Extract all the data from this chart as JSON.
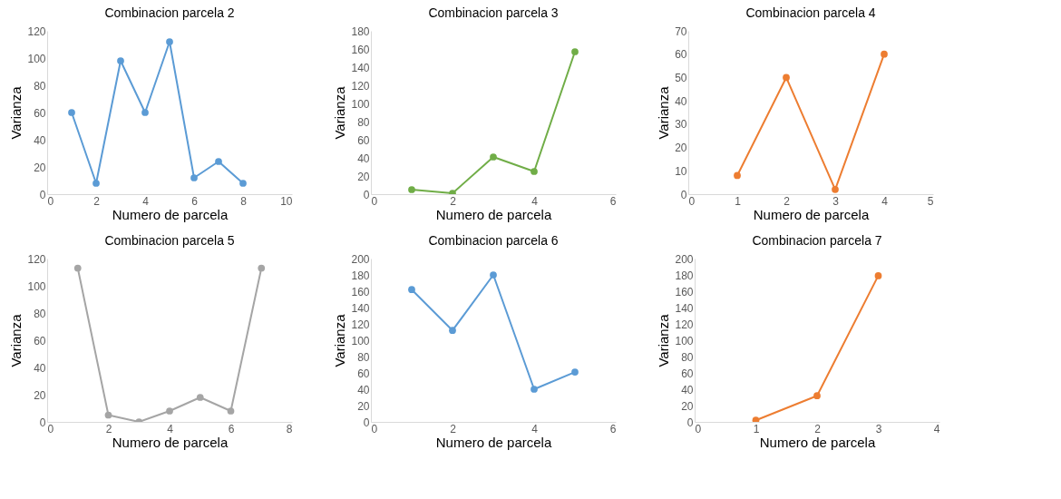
{
  "chart_data": [
    {
      "type": "line",
      "title": "Combinacion parcela 2",
      "xlabel": "Numero de parcela",
      "ylabel": "Varianza",
      "x": [
        1,
        2,
        3,
        4,
        5,
        6,
        7,
        8
      ],
      "xlim": [
        0,
        10
      ],
      "xticks": [
        0,
        2,
        4,
        6,
        8,
        10
      ],
      "ylim": [
        0,
        120
      ],
      "yticks": [
        0,
        20,
        40,
        60,
        80,
        100,
        120
      ],
      "marker": "circle",
      "grid": false,
      "series": [
        {
          "color": "#5b9bd5",
          "values": [
            60,
            8,
            98,
            60,
            112,
            12,
            24,
            8
          ]
        }
      ]
    },
    {
      "type": "line",
      "title": "Combinacion parcela 3",
      "xlabel": "Numero de parcela",
      "ylabel": "Varianza",
      "x": [
        1,
        2,
        3,
        4,
        5
      ],
      "xlim": [
        0,
        6
      ],
      "xticks": [
        0,
        2,
        4,
        6
      ],
      "ylim": [
        0,
        180
      ],
      "yticks": [
        0,
        20,
        40,
        60,
        80,
        100,
        120,
        140,
        160,
        180
      ],
      "marker": "circle",
      "grid": false,
      "series": [
        {
          "color": "#70ad47",
          "values": [
            5,
            1,
            41,
            25,
            157
          ]
        }
      ]
    },
    {
      "type": "line",
      "title": "Combinacion parcela 4",
      "xlabel": "Numero de parcela",
      "ylabel": "Varianza",
      "x": [
        1,
        2,
        3,
        4
      ],
      "xlim": [
        0,
        5
      ],
      "xticks": [
        0,
        1,
        2,
        3,
        4,
        5
      ],
      "ylim": [
        0,
        70
      ],
      "yticks": [
        0,
        10,
        20,
        30,
        40,
        50,
        60,
        70
      ],
      "marker": "circle",
      "grid": false,
      "series": [
        {
          "color": "#ed7d31",
          "values": [
            8,
            50,
            2,
            60
          ]
        }
      ]
    },
    {
      "type": "line",
      "title": "Combinacion parcela 5",
      "xlabel": "Numero de parcela",
      "ylabel": "Varianza",
      "x": [
        1,
        2,
        3,
        4,
        5,
        6,
        7
      ],
      "xlim": [
        0,
        8
      ],
      "xticks": [
        0,
        2,
        4,
        6,
        8
      ],
      "ylim": [
        0,
        120
      ],
      "yticks": [
        0,
        20,
        40,
        60,
        80,
        100,
        120
      ],
      "marker": "circle",
      "grid": false,
      "series": [
        {
          "color": "#a5a5a5",
          "values": [
            113,
            5,
            0,
            8,
            18,
            8,
            113
          ]
        }
      ]
    },
    {
      "type": "line",
      "title": "Combinacion parcela 6",
      "xlabel": "Numero de parcela",
      "ylabel": "Varianza",
      "x": [
        1,
        2,
        3,
        4,
        5
      ],
      "xlim": [
        0,
        6
      ],
      "xticks": [
        0,
        2,
        4,
        6
      ],
      "ylim": [
        0,
        200
      ],
      "yticks": [
        0,
        20,
        40,
        60,
        80,
        100,
        120,
        140,
        160,
        180,
        200
      ],
      "marker": "circle",
      "grid": false,
      "series": [
        {
          "color": "#5b9bd5",
          "values": [
            162,
            112,
            180,
            40,
            61
          ]
        }
      ]
    },
    {
      "type": "line",
      "title": "Combinacion parcela 7",
      "xlabel": "Numero de parcela",
      "ylabel": "Varianza",
      "x": [
        1,
        2,
        3
      ],
      "xlim": [
        0,
        4
      ],
      "xticks": [
        0,
        1,
        2,
        3,
        4
      ],
      "ylim": [
        0,
        200
      ],
      "yticks": [
        0,
        20,
        40,
        60,
        80,
        100,
        120,
        140,
        160,
        180,
        200
      ],
      "marker": "circle",
      "grid": false,
      "series": [
        {
          "color": "#ed7d31",
          "values": [
            2,
            32,
            179
          ]
        }
      ]
    }
  ]
}
